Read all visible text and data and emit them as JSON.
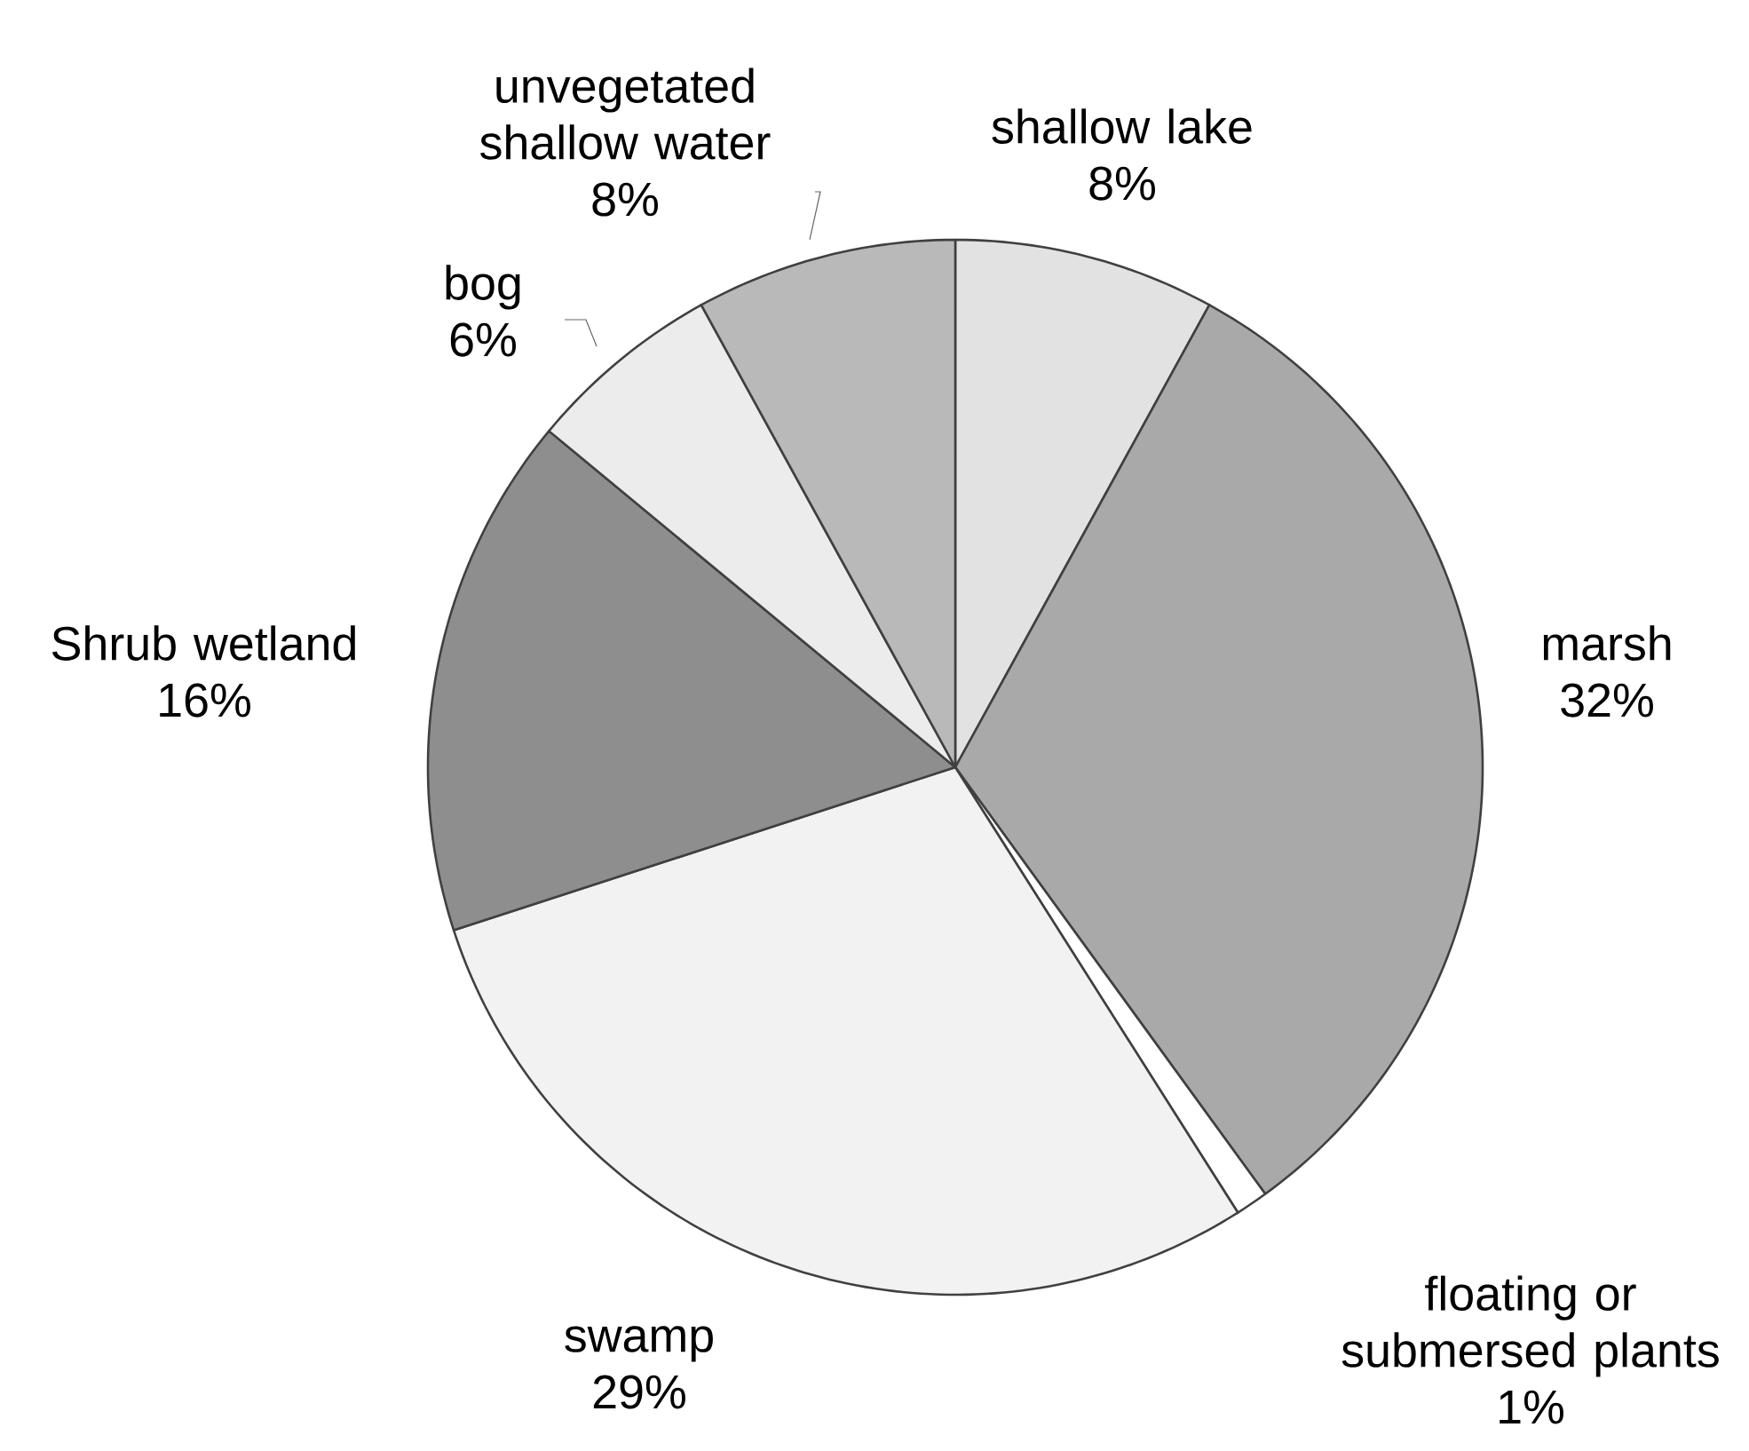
{
  "chart_data": {
    "type": "pie",
    "categories": [
      "shallow lake",
      "marsh",
      "floating or submersed plants",
      "swamp",
      "Shrub wetland",
      "bog",
      "unvegetated shallow water"
    ],
    "values": [
      8,
      32,
      1,
      29,
      16,
      6,
      8
    ],
    "value_labels": [
      "8%",
      "32%",
      "1%",
      "29%",
      "16%",
      "6%",
      "8%"
    ],
    "colors": [
      "#e2e2e2",
      "#a9a9a9",
      "#ffffff",
      "#f2f2f2",
      "#8e8e8e",
      "#ececec",
      "#b9b9b9"
    ]
  }
}
